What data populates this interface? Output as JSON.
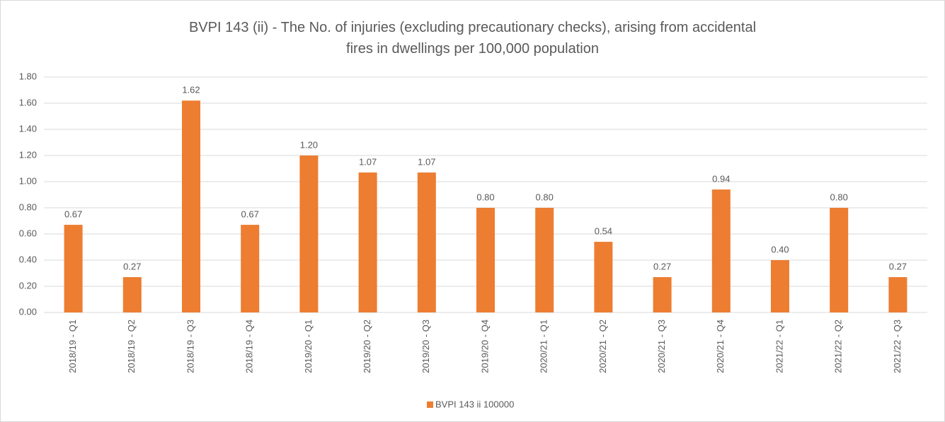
{
  "chart_data": {
    "type": "bar",
    "title": "BVPI 143 (ii) - The No. of injuries (excluding precautionary checks), arising from accidental fires in dwellings per 100,000 population",
    "categories": [
      "2018/19 - Q1",
      "2018/19 - Q2",
      "2018/19 - Q3",
      "2018/19 - Q4",
      "2019/20 - Q1",
      "2019/20 - Q2",
      "2019/20 - Q3",
      "2019/20 - Q4",
      "2020/21 - Q1",
      "2020/21 - Q2",
      "2020/21 - Q3",
      "2020/21 - Q4",
      "2021/22 - Q1",
      "2021/22 - Q2",
      "2021/22 - Q3"
    ],
    "series": [
      {
        "name": "BVPI 143 ii 100000",
        "color": "#ed7d31",
        "values": [
          0.67,
          0.27,
          1.62,
          0.67,
          1.2,
          1.07,
          1.07,
          0.8,
          0.8,
          0.54,
          0.27,
          0.94,
          0.4,
          0.8,
          0.27
        ],
        "value_labels": [
          "0.67",
          "0.27",
          "1.62",
          "0.67",
          "1.20",
          "1.07",
          "1.07",
          "0.80",
          "0.80",
          "0.54",
          "0.27",
          "0.94",
          "0.40",
          "0.80",
          "0.27"
        ]
      }
    ],
    "ylim": [
      0,
      1.8
    ],
    "yticks": [
      {
        "value": 0,
        "label": "0.00"
      },
      {
        "value": 0.2,
        "label": "0.20"
      },
      {
        "value": 0.4,
        "label": "0.40"
      },
      {
        "value": 0.6,
        "label": "0.60"
      },
      {
        "value": 0.8,
        "label": "0.80"
      },
      {
        "value": 1.0,
        "label": "1.00"
      },
      {
        "value": 1.2,
        "label": "1.20"
      },
      {
        "value": 1.4,
        "label": "1.40"
      },
      {
        "value": 1.6,
        "label": "1.60"
      },
      {
        "value": 1.8,
        "label": "1.80"
      }
    ],
    "grid": true,
    "legend": "bottom"
  }
}
